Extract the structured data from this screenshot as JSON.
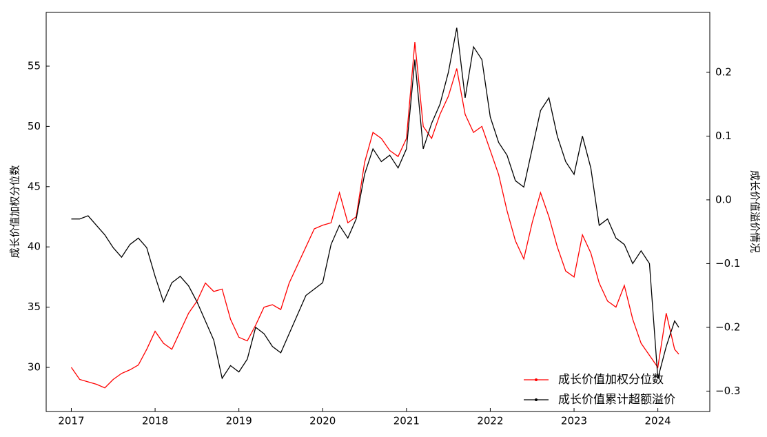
{
  "chart_data": {
    "type": "line",
    "y_label": "成长价值加权分位数",
    "y2_label": "成长价值溢价情况",
    "x": [
      2017.0,
      2017.1,
      2017.2,
      2017.3,
      2017.4,
      2017.5,
      2017.6,
      2017.7,
      2017.8,
      2017.9,
      2018.0,
      2018.1,
      2018.2,
      2018.3,
      2018.4,
      2018.5,
      2018.6,
      2018.7,
      2018.8,
      2018.9,
      2019.0,
      2019.1,
      2019.2,
      2019.3,
      2019.4,
      2019.5,
      2019.6,
      2019.7,
      2019.8,
      2019.9,
      2020.0,
      2020.1,
      2020.2,
      2020.3,
      2020.4,
      2020.5,
      2020.6,
      2020.7,
      2020.8,
      2020.9,
      2021.0,
      2021.1,
      2021.2,
      2021.3,
      2021.4,
      2021.5,
      2021.6,
      2021.7,
      2021.8,
      2021.9,
      2022.0,
      2022.1,
      2022.2,
      2022.3,
      2022.4,
      2022.5,
      2022.6,
      2022.7,
      2022.8,
      2022.9,
      2023.0,
      2023.1,
      2023.2,
      2023.3,
      2023.4,
      2023.5,
      2023.6,
      2023.7,
      2023.8,
      2023.9,
      2024.0,
      2024.1,
      2024.2,
      2024.25
    ],
    "series": [
      {
        "name": "成长价值加权分位数",
        "color": "#ff0000",
        "values": [
          30.0,
          29.0,
          28.8,
          28.6,
          28.3,
          29.0,
          29.5,
          29.8,
          30.2,
          31.5,
          33.0,
          32.0,
          31.5,
          33.0,
          34.5,
          35.5,
          37.0,
          36.3,
          36.5,
          34.0,
          32.5,
          32.2,
          33.5,
          35.0,
          35.2,
          34.8,
          37.0,
          38.5,
          40.0,
          41.5,
          41.8,
          42.0,
          44.5,
          42.0,
          42.5,
          47.0,
          49.5,
          49.0,
          48.0,
          47.5,
          49.0,
          57.0,
          50.0,
          49.0,
          51.0,
          52.5,
          54.8,
          51.0,
          49.5,
          50.0,
          48.0,
          46.0,
          43.0,
          40.5,
          39.0,
          42.0,
          44.5,
          42.5,
          40.0,
          38.0,
          37.5,
          41.0,
          39.5,
          37.0,
          35.5,
          35.0,
          36.8,
          34.0,
          32.0,
          31.0,
          30.0,
          34.5,
          31.5,
          31.1
        ]
      },
      {
        "name": "成长价值累计超额溢价",
        "color": "#000000",
        "axis": "y2",
        "values": [
          -0.03,
          -0.03,
          -0.025,
          -0.04,
          -0.055,
          -0.075,
          -0.09,
          -0.07,
          -0.06,
          -0.075,
          -0.12,
          -0.16,
          -0.13,
          -0.12,
          -0.135,
          -0.16,
          -0.19,
          -0.22,
          -0.28,
          -0.26,
          -0.27,
          -0.25,
          -0.2,
          -0.21,
          -0.23,
          -0.24,
          -0.21,
          -0.18,
          -0.15,
          -0.14,
          -0.13,
          -0.07,
          -0.04,
          -0.06,
          -0.03,
          0.04,
          0.08,
          0.06,
          0.07,
          0.05,
          0.08,
          0.22,
          0.08,
          0.12,
          0.15,
          0.2,
          0.27,
          0.16,
          0.24,
          0.22,
          0.13,
          0.09,
          0.07,
          0.03,
          0.02,
          0.08,
          0.14,
          0.16,
          0.1,
          0.06,
          0.04,
          0.1,
          0.05,
          -0.04,
          -0.03,
          -0.06,
          -0.07,
          -0.1,
          -0.08,
          -0.1,
          -0.28,
          -0.23,
          -0.19,
          -0.2
        ]
      }
    ],
    "xlim": [
      2016.7,
      2024.62
    ],
    "xticks": [
      2017,
      2018,
      2019,
      2020,
      2021,
      2022,
      2023,
      2024
    ],
    "ylim": [
      26.34,
      59.46
    ],
    "yticks": [
      30,
      35,
      40,
      45,
      50,
      55
    ],
    "y2lim": [
      -0.332,
      0.294
    ],
    "y2ticks": [
      {
        "value": -0.3,
        "label": "−0.3"
      },
      {
        "value": -0.2,
        "label": "−0.2"
      },
      {
        "value": -0.1,
        "label": "−0.1"
      },
      {
        "value": 0,
        "label": "0.0"
      },
      0.1,
      0.2
    ],
    "legend": "lower right",
    "grid": false
  }
}
